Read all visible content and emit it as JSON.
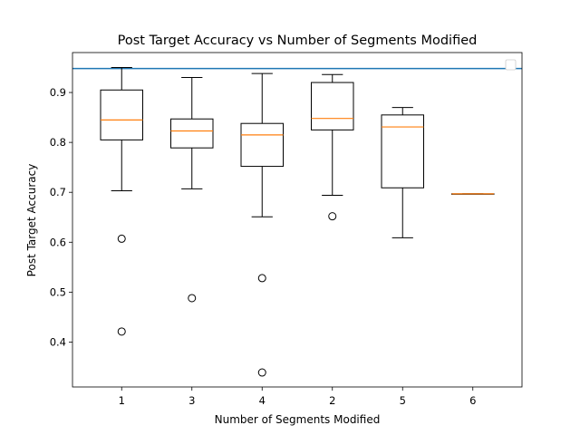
{
  "chart_data": {
    "type": "box",
    "title": "Post Target Accuracy vs Number of Segments Modified",
    "xlabel": "Number of Segments Modified",
    "ylabel": "Post Target Accuracy",
    "categories": [
      "1",
      "3",
      "4",
      "2",
      "5",
      "6"
    ],
    "ylim": [
      0.31,
      0.98
    ],
    "yticks": [
      0.4,
      0.5,
      0.6,
      0.7,
      0.8,
      0.9
    ],
    "ytick_labels": [
      "0.4",
      "0.5",
      "0.6",
      "0.7",
      "0.8",
      "0.9"
    ],
    "reference_line": {
      "y": 0.948,
      "color": "#1f77b4"
    },
    "legend": {
      "position": "top-right",
      "entries": []
    },
    "colors": {
      "box": "#000000",
      "median": "#ff7f0e",
      "flier": "#000000"
    },
    "boxes": [
      {
        "label": "1",
        "whisker_low": 0.703,
        "q1": 0.805,
        "median": 0.845,
        "q3": 0.905,
        "whisker_high": 0.95,
        "fliers": [
          0.607,
          0.421
        ]
      },
      {
        "label": "3",
        "whisker_low": 0.707,
        "q1": 0.789,
        "median": 0.823,
        "q3": 0.847,
        "whisker_high": 0.93,
        "fliers": [
          0.488
        ]
      },
      {
        "label": "4",
        "whisker_low": 0.651,
        "q1": 0.752,
        "median": 0.815,
        "q3": 0.838,
        "whisker_high": 0.938,
        "fliers": [
          0.528,
          0.339
        ]
      },
      {
        "label": "2",
        "whisker_low": 0.694,
        "q1": 0.825,
        "median": 0.848,
        "q3": 0.92,
        "whisker_high": 0.936,
        "fliers": [
          0.652
        ]
      },
      {
        "label": "5",
        "whisker_low": 0.609,
        "q1": 0.709,
        "median": 0.831,
        "q3": 0.855,
        "whisker_high": 0.87,
        "fliers": []
      },
      {
        "label": "6",
        "whisker_low": 0.697,
        "q1": 0.697,
        "median": 0.697,
        "q3": 0.697,
        "whisker_high": 0.697,
        "fliers": []
      }
    ]
  }
}
